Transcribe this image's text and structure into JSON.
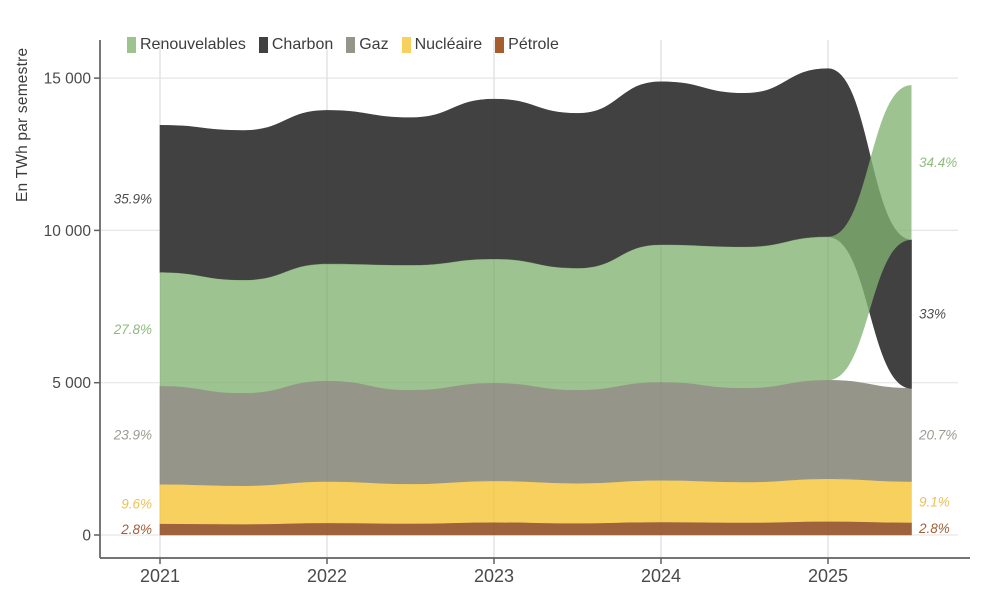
{
  "page": {
    "background": "#ffffff"
  },
  "legend": {
    "items": [
      {
        "label": "Renouvelables",
        "swatch": "#9dc48f"
      },
      {
        "label": "Charbon",
        "swatch": "#414141"
      },
      {
        "label": "Gaz",
        "swatch": "#95958a"
      },
      {
        "label": "Nucléaire",
        "swatch": "#f8d05e"
      },
      {
        "label": "Pétrole",
        "swatch": "#a65d2d"
      }
    ]
  },
  "chart_data": {
    "type": "area",
    "variant": "stacked_stream_with_rank_swap_at_last_point",
    "title": "",
    "ylabel": "En TWh par semestre",
    "xlabel": "",
    "x": [
      2021,
      2021.5,
      2022,
      2022.5,
      2023,
      2023.5,
      2024,
      2024.5,
      2025,
      2025.5
    ],
    "x_unit": "semestre",
    "x_tick_labels": [
      "2021",
      "2022",
      "2023",
      "2024",
      "2025"
    ],
    "x_tick_values": [
      2021,
      2022,
      2023,
      2024,
      2025
    ],
    "y_tick_labels": [
      "0",
      "5 000",
      "10 000",
      "15 000"
    ],
    "y_tick_values": [
      0,
      5000,
      10000,
      15000
    ],
    "ylim": [
      0,
      15500
    ],
    "grid": true,
    "legend_position": "top-left-inside",
    "series": [
      {
        "name": "Pétrole",
        "color": "#9e633c",
        "fill_opacity": 1,
        "values": [
          377,
          360,
          400,
          380,
          420,
          390,
          430,
          410,
          450,
          413
        ],
        "start_label": "2.8%",
        "end_label": "2.8%",
        "label_color": "#a2603a"
      },
      {
        "name": "Nucléaire",
        "color": "#f8d05e",
        "fill_opacity": 1,
        "values": [
          1291,
          1260,
          1360,
          1300,
          1360,
          1310,
          1370,
          1330,
          1400,
          1344
        ],
        "start_label": "9.6%",
        "end_label": "9.1%",
        "label_color": "#ecc250"
      },
      {
        "name": "Gaz",
        "color": "#95958a",
        "fill_opacity": 1,
        "values": [
          3215,
          3030,
          3290,
          3070,
          3200,
          3050,
          3210,
          3075,
          3230,
          3057
        ],
        "start_label": "23.9%",
        "end_label": "20.7%",
        "label_color": "#9b9b92"
      },
      {
        "name": "Renouvelables",
        "color": "#82b471",
        "fill_opacity": 0.78,
        "values": [
          3739,
          3720,
          3850,
          4110,
          4080,
          4010,
          4520,
          4645,
          4710,
          5081
        ],
        "start_label": "27.8%",
        "end_label": "34.4%",
        "label_color": "#8fbc7d"
      },
      {
        "name": "Charbon",
        "color": "#414141",
        "fill_opacity": 1,
        "values": [
          4829,
          4910,
          5040,
          4840,
          5250,
          5080,
          5350,
          5040,
          5520,
          4874
        ],
        "start_label": "35.9%",
        "end_label": "33%",
        "label_color": "#4d4d4d"
      }
    ],
    "stack_order_main": [
      "Pétrole",
      "Nucléaire",
      "Gaz",
      "Renouvelables",
      "Charbon"
    ],
    "stack_order_final": [
      "Pétrole",
      "Nucléaire",
      "Gaz",
      "Charbon",
      "Renouvelables"
    ]
  }
}
